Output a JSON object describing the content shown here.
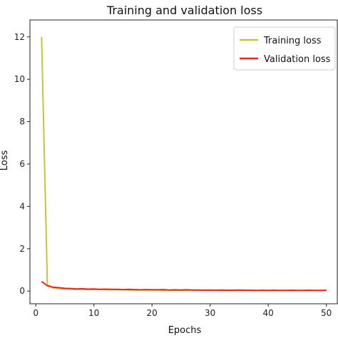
{
  "chart_data": {
    "type": "line",
    "title": "Training and validation loss",
    "xlabel": "Epochs",
    "ylabel": "Loss",
    "xlim": [
      -1,
      52
    ],
    "ylim": [
      -0.6,
      12.8
    ],
    "xticks": [
      0,
      10,
      20,
      30,
      40,
      50
    ],
    "yticks": [
      0,
      2,
      4,
      6,
      8,
      10,
      12
    ],
    "grid": false,
    "legend_position": "top-right",
    "series": [
      {
        "name": "Training loss",
        "color": "#c8c43a",
        "x": [
          1,
          2,
          3,
          4,
          5,
          6,
          7,
          8,
          9,
          10,
          11,
          12,
          13,
          14,
          15,
          16,
          17,
          18,
          19,
          20,
          21,
          22,
          23,
          24,
          25,
          26,
          27,
          28,
          29,
          30,
          31,
          32,
          33,
          34,
          35,
          36,
          37,
          38,
          39,
          40,
          41,
          42,
          43,
          44,
          45,
          46,
          47,
          48,
          49,
          50
        ],
        "y": [
          12.0,
          0.3,
          0.15,
          0.12,
          0.1,
          0.09,
          0.08,
          0.08,
          0.07,
          0.07,
          0.07,
          0.06,
          0.06,
          0.06,
          0.06,
          0.05,
          0.05,
          0.05,
          0.05,
          0.05,
          0.05,
          0.04,
          0.04,
          0.04,
          0.04,
          0.04,
          0.04,
          0.04,
          0.04,
          0.04,
          0.04,
          0.03,
          0.03,
          0.03,
          0.03,
          0.03,
          0.03,
          0.03,
          0.03,
          0.03,
          0.03,
          0.03,
          0.03,
          0.03,
          0.03,
          0.03,
          0.03,
          0.03,
          0.03,
          0.03
        ]
      },
      {
        "name": "Validation loss",
        "color": "#e8281e",
        "x": [
          1,
          2,
          3,
          4,
          5,
          6,
          7,
          8,
          9,
          10,
          11,
          12,
          13,
          14,
          15,
          16,
          17,
          18,
          19,
          20,
          21,
          22,
          23,
          24,
          25,
          26,
          27,
          28,
          29,
          30,
          31,
          32,
          33,
          34,
          35,
          36,
          37,
          38,
          39,
          40,
          41,
          42,
          43,
          44,
          45,
          46,
          47,
          48,
          49,
          50
        ],
        "y": [
          0.45,
          0.25,
          0.18,
          0.16,
          0.13,
          0.12,
          0.1,
          0.11,
          0.09,
          0.1,
          0.08,
          0.09,
          0.08,
          0.08,
          0.07,
          0.08,
          0.07,
          0.06,
          0.07,
          0.06,
          0.06,
          0.07,
          0.05,
          0.06,
          0.05,
          0.06,
          0.05,
          0.05,
          0.04,
          0.05,
          0.04,
          0.05,
          0.04,
          0.04,
          0.05,
          0.04,
          0.04,
          0.03,
          0.04,
          0.03,
          0.04,
          0.03,
          0.03,
          0.04,
          0.03,
          0.03,
          0.04,
          0.03,
          0.03,
          0.04
        ]
      }
    ]
  }
}
